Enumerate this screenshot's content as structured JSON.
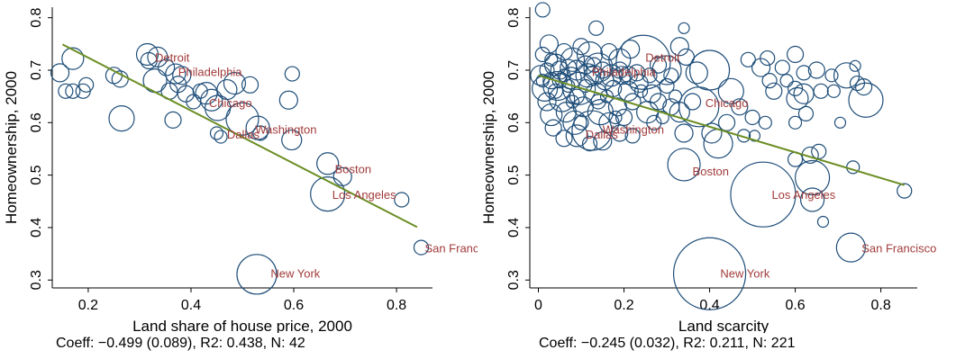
{
  "colors": {
    "bubble": "#1f4e79",
    "city_label": "#a23b3b",
    "fit_line": "#6b8e23",
    "axis": "#000000"
  },
  "chart_data": [
    {
      "type": "scatter",
      "title": "",
      "xlabel": "Land share of house price, 2000",
      "ylabel": "Homeownership, 2000",
      "xlim": [
        0.13,
        0.87
      ],
      "ylim": [
        0.285,
        0.82
      ],
      "xticks": [
        0.2,
        0.4,
        0.6,
        0.8
      ],
      "xtick_labels": [
        "0.2",
        "0.4",
        "0.6",
        "0.8"
      ],
      "yticks": [
        0.3,
        0.4,
        0.5,
        0.6,
        0.7,
        0.8
      ],
      "ytick_labels": [
        "0.3",
        "0.4",
        "0.5",
        "0.6",
        "0.7",
        "0.8"
      ],
      "grid": false,
      "fit_line": {
        "x": [
          0.15,
          0.84
        ],
        "y": [
          0.749,
          0.401
        ]
      },
      "caption": "Coeff: −0.499 (0.089), R2: 0.438, N: 42",
      "points": [
        {
          "x": 0.145,
          "y": 0.695,
          "r": 10
        },
        {
          "x": 0.17,
          "y": 0.722,
          "r": 12
        },
        {
          "x": 0.19,
          "y": 0.66,
          "r": 8
        },
        {
          "x": 0.196,
          "y": 0.672,
          "r": 8
        },
        {
          "x": 0.156,
          "y": 0.66,
          "r": 8
        },
        {
          "x": 0.17,
          "y": 0.66,
          "r": 8
        },
        {
          "x": 0.25,
          "y": 0.69,
          "r": 9
        },
        {
          "x": 0.262,
          "y": 0.683,
          "r": 9
        },
        {
          "x": 0.265,
          "y": 0.608,
          "r": 14
        },
        {
          "x": 0.315,
          "y": 0.73,
          "r": 12
        },
        {
          "x": 0.318,
          "y": 0.718,
          "r": 9
        },
        {
          "x": 0.33,
          "y": 0.68,
          "r": 13
        },
        {
          "x": 0.335,
          "y": 0.725,
          "r": 11
        },
        {
          "x": 0.352,
          "y": 0.705,
          "r": 9
        },
        {
          "x": 0.358,
          "y": 0.66,
          "r": 9
        },
        {
          "x": 0.365,
          "y": 0.605,
          "r": 9
        },
        {
          "x": 0.37,
          "y": 0.693,
          "r": 11
        },
        {
          "x": 0.375,
          "y": 0.673,
          "r": 9
        },
        {
          "x": 0.382,
          "y": 0.69,
          "r": 10
        },
        {
          "x": 0.39,
          "y": 0.655,
          "r": 9
        },
        {
          "x": 0.405,
          "y": 0.64,
          "r": 8
        },
        {
          "x": 0.418,
          "y": 0.66,
          "r": 8
        },
        {
          "x": 0.43,
          "y": 0.656,
          "r": 12
        },
        {
          "x": 0.44,
          "y": 0.643,
          "r": 12
        },
        {
          "x": 0.452,
          "y": 0.628,
          "r": 14
        },
        {
          "x": 0.47,
          "y": 0.663,
          "r": 11
        },
        {
          "x": 0.485,
          "y": 0.675,
          "r": 12
        },
        {
          "x": 0.515,
          "y": 0.672,
          "r": 9
        },
        {
          "x": 0.5,
          "y": 0.607,
          "r": 18
        },
        {
          "x": 0.53,
          "y": 0.59,
          "r": 13
        },
        {
          "x": 0.535,
          "y": 0.58,
          "r": 8
        },
        {
          "x": 0.45,
          "y": 0.58,
          "r": 7
        },
        {
          "x": 0.458,
          "y": 0.573,
          "r": 7
        },
        {
          "x": 0.59,
          "y": 0.643,
          "r": 10
        },
        {
          "x": 0.597,
          "y": 0.693,
          "r": 8
        },
        {
          "x": 0.596,
          "y": 0.567,
          "r": 11
        },
        {
          "x": 0.666,
          "y": 0.522,
          "r": 12
        },
        {
          "x": 0.695,
          "y": 0.497,
          "r": 10
        },
        {
          "x": 0.666,
          "y": 0.464,
          "r": 19
        },
        {
          "x": 0.81,
          "y": 0.453,
          "r": 8
        },
        {
          "x": 0.848,
          "y": 0.362,
          "r": 8
        },
        {
          "x": 0.528,
          "y": 0.311,
          "r": 22
        }
      ],
      "city_labels": [
        {
          "text": "Detroit",
          "x": 0.33,
          "y": 0.725
        },
        {
          "text": "Philadelphia",
          "x": 0.375,
          "y": 0.697
        },
        {
          "text": "Chicago",
          "x": 0.435,
          "y": 0.638
        },
        {
          "text": "Washington",
          "x": 0.525,
          "y": 0.588
        },
        {
          "text": "Dallas",
          "x": 0.47,
          "y": 0.578
        },
        {
          "text": "Boston",
          "x": 0.68,
          "y": 0.512
        },
        {
          "text": "Los Angeles",
          "x": 0.675,
          "y": 0.463
        },
        {
          "text": "San Francisco",
          "x": 0.855,
          "y": 0.361
        },
        {
          "text": "New York",
          "x": 0.555,
          "y": 0.313
        }
      ]
    },
    {
      "type": "scatter",
      "title": "",
      "xlabel": "Land scarcity",
      "ylabel": "Homeownership, 2000",
      "xlim": [
        -0.02,
        0.885
      ],
      "ylim": [
        0.285,
        0.82
      ],
      "xticks": [
        0,
        0.2,
        0.4,
        0.6,
        0.8
      ],
      "xtick_labels": [
        "0",
        "0.2",
        "0.4",
        "0.6",
        "0.8"
      ],
      "yticks": [
        0.3,
        0.4,
        0.5,
        0.6,
        0.7,
        0.8
      ],
      "ytick_labels": [
        "0.3",
        "0.4",
        "0.5",
        "0.6",
        "0.7",
        "0.8"
      ],
      "grid": false,
      "fit_line": {
        "x": [
          0.0,
          0.855
        ],
        "y": [
          0.69,
          0.481
        ]
      },
      "caption": "Coeff: −0.245 (0.032), R2: 0.211, N: 221",
      "points": [
        {
          "x": 0.01,
          "y": 0.815,
          "r": 8
        },
        {
          "x": 0.135,
          "y": 0.78,
          "r": 8
        },
        {
          "x": 0.34,
          "y": 0.78,
          "r": 6
        },
        {
          "x": 0.01,
          "y": 0.73,
          "r": 8
        },
        {
          "x": 0.025,
          "y": 0.75,
          "r": 10
        },
        {
          "x": 0.04,
          "y": 0.71,
          "r": 12
        },
        {
          "x": 0.06,
          "y": 0.735,
          "r": 9
        },
        {
          "x": 0.08,
          "y": 0.72,
          "r": 13
        },
        {
          "x": 0.1,
          "y": 0.745,
          "r": 9
        },
        {
          "x": 0.12,
          "y": 0.73,
          "r": 14
        },
        {
          "x": 0.14,
          "y": 0.705,
          "r": 16
        },
        {
          "x": 0.165,
          "y": 0.735,
          "r": 9
        },
        {
          "x": 0.19,
          "y": 0.72,
          "r": 12
        },
        {
          "x": 0.215,
          "y": 0.74,
          "r": 10
        },
        {
          "x": 0.245,
          "y": 0.715,
          "r": 30
        },
        {
          "x": 0.3,
          "y": 0.7,
          "r": 16
        },
        {
          "x": 0.33,
          "y": 0.745,
          "r": 10
        },
        {
          "x": 0.345,
          "y": 0.725,
          "r": 9
        },
        {
          "x": 0.37,
          "y": 0.695,
          "r": 12
        },
        {
          "x": 0.4,
          "y": 0.7,
          "r": 22
        },
        {
          "x": 0.45,
          "y": 0.66,
          "r": 14
        },
        {
          "x": 0.49,
          "y": 0.72,
          "r": 8
        },
        {
          "x": 0.52,
          "y": 0.705,
          "r": 10
        },
        {
          "x": 0.535,
          "y": 0.723,
          "r": 8
        },
        {
          "x": 0.54,
          "y": 0.68,
          "r": 8
        },
        {
          "x": 0.57,
          "y": 0.705,
          "r": 8
        },
        {
          "x": 0.6,
          "y": 0.73,
          "r": 9
        },
        {
          "x": 0.62,
          "y": 0.695,
          "r": 8
        },
        {
          "x": 0.65,
          "y": 0.7,
          "r": 9
        },
        {
          "x": 0.685,
          "y": 0.69,
          "r": 7
        },
        {
          "x": 0.72,
          "y": 0.69,
          "r": 14
        },
        {
          "x": 0.745,
          "y": 0.675,
          "r": 8
        },
        {
          "x": 0.74,
          "y": 0.708,
          "r": 6
        },
        {
          "x": 0.76,
          "y": 0.668,
          "r": 9
        },
        {
          "x": 0.765,
          "y": 0.643,
          "r": 19
        },
        {
          "x": 0.6,
          "y": 0.665,
          "r": 8
        },
        {
          "x": 0.62,
          "y": 0.655,
          "r": 11
        },
        {
          "x": 0.605,
          "y": 0.646,
          "r": 12
        },
        {
          "x": 0.66,
          "y": 0.66,
          "r": 8
        },
        {
          "x": 0.005,
          "y": 0.69,
          "r": 11
        },
        {
          "x": 0.015,
          "y": 0.665,
          "r": 14
        },
        {
          "x": 0.02,
          "y": 0.64,
          "r": 10
        },
        {
          "x": 0.03,
          "y": 0.615,
          "r": 12
        },
        {
          "x": 0.035,
          "y": 0.59,
          "r": 9
        },
        {
          "x": 0.045,
          "y": 0.67,
          "r": 16
        },
        {
          "x": 0.055,
          "y": 0.645,
          "r": 14
        },
        {
          "x": 0.065,
          "y": 0.62,
          "r": 11
        },
        {
          "x": 0.075,
          "y": 0.685,
          "r": 12
        },
        {
          "x": 0.085,
          "y": 0.6,
          "r": 13
        },
        {
          "x": 0.095,
          "y": 0.665,
          "r": 18
        },
        {
          "x": 0.105,
          "y": 0.63,
          "r": 11
        },
        {
          "x": 0.115,
          "y": 0.69,
          "r": 13
        },
        {
          "x": 0.125,
          "y": 0.585,
          "r": 22
        },
        {
          "x": 0.135,
          "y": 0.655,
          "r": 12
        },
        {
          "x": 0.145,
          "y": 0.62,
          "r": 14
        },
        {
          "x": 0.155,
          "y": 0.68,
          "r": 10
        },
        {
          "x": 0.165,
          "y": 0.6,
          "r": 11
        },
        {
          "x": 0.175,
          "y": 0.665,
          "r": 9
        },
        {
          "x": 0.185,
          "y": 0.63,
          "r": 10
        },
        {
          "x": 0.195,
          "y": 0.69,
          "r": 10
        },
        {
          "x": 0.2,
          "y": 0.61,
          "r": 9
        },
        {
          "x": 0.21,
          "y": 0.66,
          "r": 11
        },
        {
          "x": 0.22,
          "y": 0.64,
          "r": 9
        },
        {
          "x": 0.235,
          "y": 0.675,
          "r": 10
        },
        {
          "x": 0.255,
          "y": 0.62,
          "r": 12
        },
        {
          "x": 0.265,
          "y": 0.655,
          "r": 10
        },
        {
          "x": 0.28,
          "y": 0.64,
          "r": 9
        },
        {
          "x": 0.3,
          "y": 0.67,
          "r": 8
        },
        {
          "x": 0.31,
          "y": 0.63,
          "r": 9
        },
        {
          "x": 0.33,
          "y": 0.62,
          "r": 11
        },
        {
          "x": 0.36,
          "y": 0.64,
          "r": 9
        },
        {
          "x": 0.34,
          "y": 0.58,
          "r": 10
        },
        {
          "x": 0.375,
          "y": 0.63,
          "r": 22
        },
        {
          "x": 0.405,
          "y": 0.58,
          "r": 11
        },
        {
          "x": 0.44,
          "y": 0.6,
          "r": 9
        },
        {
          "x": 0.47,
          "y": 0.63,
          "r": 9
        },
        {
          "x": 0.5,
          "y": 0.61,
          "r": 8
        },
        {
          "x": 0.53,
          "y": 0.6,
          "r": 7
        },
        {
          "x": 0.505,
          "y": 0.575,
          "r": 6
        },
        {
          "x": 0.48,
          "y": 0.575,
          "r": 7
        },
        {
          "x": 0.42,
          "y": 0.56,
          "r": 16
        },
        {
          "x": 0.06,
          "y": 0.57,
          "r": 9
        },
        {
          "x": 0.09,
          "y": 0.575,
          "r": 12
        },
        {
          "x": 0.12,
          "y": 0.56,
          "r": 8
        },
        {
          "x": 0.15,
          "y": 0.565,
          "r": 10
        },
        {
          "x": 0.19,
          "y": 0.58,
          "r": 9
        },
        {
          "x": 0.22,
          "y": 0.575,
          "r": 8
        },
        {
          "x": 0.6,
          "y": 0.6,
          "r": 7
        },
        {
          "x": 0.625,
          "y": 0.617,
          "r": 8
        },
        {
          "x": 0.705,
          "y": 0.6,
          "r": 6
        },
        {
          "x": 0.655,
          "y": 0.545,
          "r": 8
        },
        {
          "x": 0.635,
          "y": 0.538,
          "r": 9
        },
        {
          "x": 0.6,
          "y": 0.53,
          "r": 8
        },
        {
          "x": 0.735,
          "y": 0.515,
          "r": 7
        },
        {
          "x": 0.855,
          "y": 0.47,
          "r": 8
        },
        {
          "x": 0.34,
          "y": 0.52,
          "r": 18
        },
        {
          "x": 0.525,
          "y": 0.463,
          "r": 36
        },
        {
          "x": 0.64,
          "y": 0.495,
          "r": 19
        },
        {
          "x": 0.64,
          "y": 0.453,
          "r": 13
        },
        {
          "x": 0.665,
          "y": 0.411,
          "r": 6
        },
        {
          "x": 0.73,
          "y": 0.362,
          "r": 16
        },
        {
          "x": 0.4,
          "y": 0.312,
          "r": 40
        },
        {
          "x": 0.02,
          "y": 0.7,
          "r": 8
        },
        {
          "x": 0.03,
          "y": 0.68,
          "r": 9
        },
        {
          "x": 0.05,
          "y": 0.7,
          "r": 10
        },
        {
          "x": 0.07,
          "y": 0.705,
          "r": 9
        },
        {
          "x": 0.09,
          "y": 0.7,
          "r": 11
        },
        {
          "x": 0.11,
          "y": 0.71,
          "r": 10
        },
        {
          "x": 0.13,
          "y": 0.69,
          "r": 11
        },
        {
          "x": 0.15,
          "y": 0.7,
          "r": 9
        },
        {
          "x": 0.17,
          "y": 0.69,
          "r": 12
        },
        {
          "x": 0.19,
          "y": 0.7,
          "r": 9
        },
        {
          "x": 0.21,
          "y": 0.69,
          "r": 10
        },
        {
          "x": 0.23,
          "y": 0.695,
          "r": 9
        },
        {
          "x": 0.03,
          "y": 0.72,
          "r": 7
        },
        {
          "x": 0.05,
          "y": 0.68,
          "r": 8
        },
        {
          "x": 0.07,
          "y": 0.67,
          "r": 7
        },
        {
          "x": 0.09,
          "y": 0.65,
          "r": 8
        },
        {
          "x": 0.11,
          "y": 0.67,
          "r": 7
        },
        {
          "x": 0.13,
          "y": 0.71,
          "r": 8
        },
        {
          "x": 0.26,
          "y": 0.69,
          "r": 8
        },
        {
          "x": 0.28,
          "y": 0.71,
          "r": 9
        },
        {
          "x": 0.31,
          "y": 0.69,
          "r": 8
        },
        {
          "x": 0.01,
          "y": 0.68,
          "r": 7
        },
        {
          "x": 0.04,
          "y": 0.66,
          "r": 8
        },
        {
          "x": 0.06,
          "y": 0.69,
          "r": 7
        },
        {
          "x": 0.08,
          "y": 0.64,
          "r": 7
        },
        {
          "x": 0.1,
          "y": 0.6,
          "r": 8
        },
        {
          "x": 0.14,
          "y": 0.64,
          "r": 8
        },
        {
          "x": 0.16,
          "y": 0.65,
          "r": 7
        },
        {
          "x": 0.18,
          "y": 0.61,
          "r": 7
        },
        {
          "x": 0.24,
          "y": 0.66,
          "r": 7
        },
        {
          "x": 0.27,
          "y": 0.6,
          "r": 8
        },
        {
          "x": 0.29,
          "y": 0.61,
          "r": 7
        },
        {
          "x": 0.32,
          "y": 0.65,
          "r": 7
        },
        {
          "x": 0.55,
          "y": 0.66,
          "r": 9
        },
        {
          "x": 0.58,
          "y": 0.68,
          "r": 7
        },
        {
          "x": 0.69,
          "y": 0.66,
          "r": 7
        }
      ],
      "city_labels": [
        {
          "text": "Detroit",
          "x": 0.25,
          "y": 0.725
        },
        {
          "text": "Philadelphia",
          "x": 0.125,
          "y": 0.697
        },
        {
          "text": "Chicago",
          "x": 0.39,
          "y": 0.638
        },
        {
          "text": "Washington",
          "x": 0.15,
          "y": 0.588
        },
        {
          "text": "Dallas",
          "x": 0.11,
          "y": 0.578
        },
        {
          "text": "Boston",
          "x": 0.36,
          "y": 0.508
        },
        {
          "text": "Los Angeles",
          "x": 0.545,
          "y": 0.463
        },
        {
          "text": "San Francisco",
          "x": 0.755,
          "y": 0.361
        },
        {
          "text": "New York",
          "x": 0.425,
          "y": 0.313
        }
      ]
    }
  ]
}
